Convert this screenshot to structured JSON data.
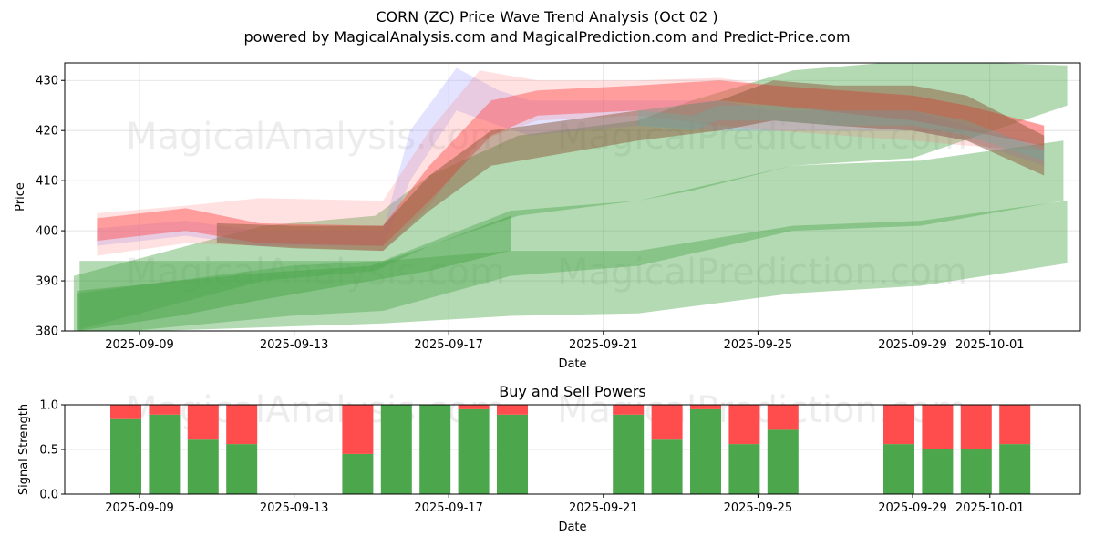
{
  "header": {
    "title": "CORN (ZC) Price Wave Trend Analysis (Oct 02 )",
    "subtitle": "powered by MagicalAnalysis.com and MagicalPrediction.com and Predict-Price.com"
  },
  "watermarks": [
    "MagicalAnalysis.com",
    "MagicalPrediction.com"
  ],
  "colors": {
    "green": "#4ca64c",
    "red": "#ff4c4c",
    "red_band": "#ff6b6b",
    "brown": "#8c5a3c",
    "blue": "#9999ff",
    "grid": "#dddddd"
  },
  "chart_data": [
    {
      "type": "area",
      "title": "",
      "xlabel": "Date",
      "ylabel": "Price",
      "ylim": [
        380,
        433.5
      ],
      "x_day_origin": "2025-09-09",
      "xlim_days": [
        -1.94,
        24.33
      ],
      "grid": true,
      "yticks": [
        380,
        390,
        400,
        410,
        420,
        430
      ],
      "xticks": [
        {
          "day": 0,
          "label": "2025-09-09"
        },
        {
          "day": 4,
          "label": "2025-09-13"
        },
        {
          "day": 8,
          "label": "2025-09-17"
        },
        {
          "day": 12,
          "label": "2025-09-21"
        },
        {
          "day": 16,
          "label": "2025-09-25"
        },
        {
          "day": 20,
          "label": "2025-09-29"
        },
        {
          "day": 22,
          "label": "2025-10-01"
        }
      ],
      "bands": [
        {
          "name": "green-trend-upper",
          "color": "green",
          "opacity": 0.42,
          "x": [
            -1.7,
            3.2,
            6.1,
            7.5,
            9.8,
            12.9,
            14.3,
            16.9,
            20.0,
            24.0
          ],
          "upper": [
            391,
            401,
            403,
            411,
            419,
            422,
            426,
            432,
            434,
            433
          ],
          "lower": [
            380,
            390,
            392,
            397,
            403,
            406,
            408,
            413,
            414.5,
            425
          ]
        },
        {
          "name": "green-trend-middle",
          "color": "green",
          "opacity": 0.42,
          "x": [
            -1.6,
            3.9,
            6.3,
            9.6,
            12.9,
            16.9,
            20.2,
            23.9
          ],
          "upper": [
            387.5,
            393,
            394,
            404,
            406,
            413,
            414,
            418
          ],
          "lower": [
            379,
            383,
            384,
            391,
            393,
            400,
            401,
            406
          ]
        },
        {
          "name": "green-trend-lower",
          "color": "green",
          "opacity": 0.42,
          "x": [
            -1.55,
            6.3,
            9.6,
            12.9,
            16.9,
            20.2,
            24.0
          ],
          "upper": [
            394,
            394,
            396,
            396,
            401,
            402,
            406
          ],
          "lower": [
            379.5,
            381.5,
            383,
            383.5,
            387.5,
            389,
            393.5
          ]
        },
        {
          "name": "green-trend-dark",
          "color": "green",
          "opacity": 0.5,
          "x": [
            -1.6,
            1.0,
            3.0,
            6.0,
            7.5,
            9.6
          ],
          "upper": [
            388,
            390,
            391.5,
            393,
            397,
            403
          ],
          "lower": [
            380,
            383,
            386,
            390,
            392,
            396
          ]
        },
        {
          "name": "blue-wave",
          "color": "blue",
          "opacity": 0.28,
          "x": [
            -1.1,
            1.2,
            3.1,
            6.3,
            7.0,
            8.2,
            9.3,
            10.1,
            12.9,
            15.0,
            16.4,
            20.0,
            21.4,
            23.4
          ],
          "upper": [
            400.5,
            402,
            400,
            400,
            420,
            432.5,
            428,
            426,
            426,
            426,
            424,
            424,
            421,
            417
          ],
          "lower": [
            397,
            399,
            397,
            397,
            410,
            424,
            421,
            419,
            421,
            420,
            420,
            420,
            418,
            413
          ]
        },
        {
          "name": "pink-wave-wide",
          "color": "red_band",
          "opacity": 0.2,
          "x": [
            -1.1,
            1.2,
            3.1,
            6.3,
            7.5,
            8.8,
            10.3,
            12.9,
            15.0,
            16.4,
            20.0,
            21.4,
            23.4
          ],
          "upper": [
            403.5,
            405,
            406.5,
            406,
            420,
            432,
            430,
            430,
            430.5,
            429,
            427,
            425,
            421
          ],
          "lower": [
            395,
            397.5,
            397,
            396,
            405,
            418,
            422,
            423,
            421,
            420,
            418,
            417,
            416
          ]
        },
        {
          "name": "red-wave",
          "color": "red",
          "opacity": 0.45,
          "x": [
            -1.1,
            1.2,
            3.1,
            6.3,
            7.5,
            9.1,
            10.3,
            12.9,
            15.0,
            16.4,
            20.0,
            21.4,
            23.4
          ],
          "upper": [
            402.5,
            404.5,
            401.5,
            401,
            413,
            426,
            428,
            429,
            430,
            429,
            427,
            425,
            421
          ],
          "lower": [
            398,
            400,
            397.5,
            397,
            406,
            419,
            423,
            424,
            426,
            425,
            422,
            420,
            417
          ]
        },
        {
          "name": "brown-wave",
          "color": "brown",
          "opacity": 0.5,
          "x": [
            2.0,
            4.0,
            6.3,
            7.5,
            9.1,
            12.9,
            15.0,
            16.4,
            18.0,
            20.0,
            21.4,
            23.4
          ],
          "upper": [
            401.5,
            401,
            401,
            411,
            420,
            424,
            426,
            430,
            429,
            429,
            427,
            419
          ],
          "lower": [
            397.5,
            396.5,
            396,
            404,
            413,
            418,
            420,
            422,
            421,
            420,
            418,
            411
          ]
        },
        {
          "name": "teal-wave",
          "color": "teal",
          "opacity": 0.3,
          "x": [
            12.9,
            14.3,
            15.0,
            16.4,
            18.0,
            20.0,
            21.4,
            23.4
          ],
          "upper": [
            424,
            423,
            425,
            425,
            424,
            424,
            422,
            416
          ],
          "lower": [
            421,
            420,
            422,
            422,
            421,
            421,
            419,
            414
          ]
        }
      ]
    },
    {
      "type": "bar",
      "title": "Buy and Sell Powers",
      "xlabel": "Date",
      "ylabel": "Signal Strength",
      "ylim": [
        0,
        1
      ],
      "yticks": [
        {
          "value": 0,
          "label": "0.0"
        },
        {
          "value": 0.5,
          "label": "0.5"
        },
        {
          "value": 1,
          "label": "1.0"
        }
      ],
      "xticks": [
        {
          "day": 0,
          "label": "2025-09-09"
        },
        {
          "day": 4,
          "label": "2025-09-13"
        },
        {
          "day": 8,
          "label": "2025-09-17"
        },
        {
          "day": 12,
          "label": "2025-09-21"
        },
        {
          "day": 16,
          "label": "2025-09-25"
        },
        {
          "day": 20,
          "label": "2025-09-29"
        },
        {
          "day": 22,
          "label": "2025-10-01"
        }
      ],
      "series": [
        {
          "name": "Buy",
          "color": "green"
        },
        {
          "name": "Sell",
          "color": "red"
        }
      ],
      "categories": [
        "2025-09-09",
        "2025-09-10",
        "2025-09-11",
        "2025-09-12",
        "2025-09-15",
        "2025-09-16",
        "2025-09-17",
        "2025-09-18",
        "2025-09-19",
        "2025-09-22",
        "2025-09-23",
        "2025-09-24",
        "2025-09-25",
        "2025-09-26",
        "2025-09-29",
        "2025-09-30",
        "2025-10-01",
        "2025-10-02"
      ],
      "bar_days": [
        0,
        1,
        2,
        3,
        6,
        7,
        8,
        9,
        10,
        13,
        14,
        15,
        16,
        17,
        20,
        21,
        22,
        23
      ],
      "buy": [
        0.84,
        0.89,
        0.61,
        0.56,
        0.45,
        1.0,
        1.0,
        0.95,
        0.89,
        0.89,
        0.61,
        0.95,
        0.56,
        0.72,
        0.56,
        0.5,
        0.5,
        0.56
      ],
      "sell": [
        0.16,
        0.11,
        0.39,
        0.44,
        0.55,
        0.0,
        0.0,
        0.05,
        0.11,
        0.11,
        0.39,
        0.05,
        0.44,
        0.28,
        0.44,
        0.5,
        0.5,
        0.44
      ]
    }
  ]
}
